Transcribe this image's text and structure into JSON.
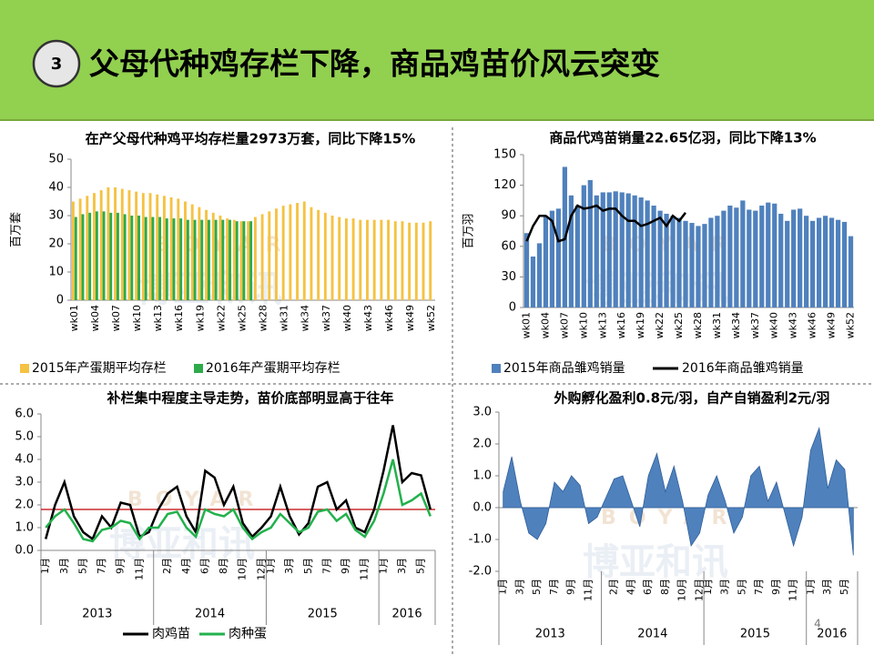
{
  "header": {
    "number": "3",
    "title": "父母代种鸡存栏下降，商品鸡苗价风云突变"
  },
  "watermark": {
    "text": "博亚和讯",
    "latin": "BOYAR"
  },
  "page_number": "4",
  "chart_data": [
    {
      "type": "bar",
      "title": "在产父母代种鸡平均存栏量2973万套，同比下降15%",
      "y_label": "百万套",
      "categories": [
        "wk01",
        null,
        null,
        "wk04",
        null,
        null,
        "wk07",
        null,
        null,
        "wk10",
        null,
        null,
        "wk13",
        null,
        null,
        "wk16",
        null,
        null,
        "wk19",
        null,
        null,
        "wk22",
        null,
        null,
        "wk25",
        null,
        null,
        "wk28",
        null,
        null,
        "wk31",
        null,
        null,
        "wk34",
        null,
        null,
        "wk37",
        null,
        null,
        "wk40",
        null,
        null,
        "wk43",
        null,
        null,
        "wk46",
        null,
        null,
        "wk49",
        null,
        null,
        "wk52"
      ],
      "series": [
        {
          "name": "2015年产蛋期平均存栏",
          "color": "#f5c242",
          "values": [
            35,
            36,
            37,
            38,
            39,
            40,
            40,
            39.5,
            39,
            38.5,
            38,
            38,
            37.5,
            37,
            36.5,
            36,
            35,
            34,
            33,
            32,
            31,
            30,
            29,
            28.5,
            28,
            28,
            29.5,
            30.5,
            31.5,
            32.5,
            33.5,
            34,
            34.5,
            35,
            33,
            32,
            31,
            30,
            29.5,
            29,
            29,
            28.5,
            28.5,
            28.5,
            28.5,
            28.5,
            28,
            28,
            27.5,
            27.5,
            27.5,
            28
          ]
        },
        {
          "name": "2016年产蛋期平均存栏",
          "color": "#2eaa4a",
          "values": [
            29.5,
            30.5,
            31,
            31.5,
            31.5,
            31,
            31,
            30.5,
            30,
            30,
            29.5,
            29.5,
            29.5,
            29,
            29,
            29,
            28.5,
            28.5,
            28.5,
            28.5,
            28.5,
            28.5,
            28.5,
            28,
            28,
            28,
            null,
            null,
            null,
            null,
            null,
            null,
            null,
            null,
            null,
            null,
            null,
            null,
            null,
            null,
            null,
            null,
            null,
            null,
            null,
            null,
            null,
            null,
            null,
            null,
            null,
            null
          ]
        }
      ],
      "ylim": [
        0,
        50
      ],
      "yticks": [
        0,
        10,
        20,
        30,
        40,
        50
      ],
      "grid": false,
      "legend": "bottom"
    },
    {
      "type": "bar",
      "title": "商品代鸡苗销量22.65亿羽，同比下降13%",
      "y_label": "百万羽",
      "categories": [
        "wk01",
        null,
        null,
        "wk04",
        null,
        null,
        "wk07",
        null,
        null,
        "wk10",
        null,
        null,
        "wk13",
        null,
        null,
        "wk16",
        null,
        null,
        "wk19",
        null,
        null,
        "wk22",
        null,
        null,
        "wk25",
        null,
        null,
        "wk28",
        null,
        null,
        "wk31",
        null,
        null,
        "wk34",
        null,
        null,
        "wk37",
        null,
        null,
        "wk40",
        null,
        null,
        "wk43",
        null,
        null,
        "wk46",
        null,
        null,
        "wk49",
        null,
        null,
        "wk52"
      ],
      "series": [
        {
          "name": "2015年商品雏鸡销量",
          "color": "#4f81bd",
          "type": "bar",
          "values": [
            73,
            50,
            63,
            90,
            95,
            97,
            138,
            110,
            100,
            120,
            125,
            110,
            113,
            113,
            114,
            113,
            112,
            110,
            108,
            105,
            100,
            95,
            92,
            90,
            88,
            85,
            83,
            80,
            82,
            88,
            90,
            95,
            100,
            98,
            105,
            96,
            95,
            100,
            103,
            102,
            92,
            85,
            96,
            97,
            90,
            85,
            88,
            90,
            88,
            86,
            84,
            70
          ]
        },
        {
          "name": "2016年商品雏鸡销量",
          "color": "#000000",
          "type": "line",
          "values": [
            65,
            80,
            90,
            90,
            85,
            65,
            67,
            90,
            100,
            97,
            98,
            100,
            95,
            97,
            97,
            90,
            85,
            85,
            80,
            82,
            85,
            88,
            80,
            90,
            85,
            93,
            null,
            null,
            null,
            null,
            null,
            null,
            null,
            null,
            null,
            null,
            null,
            null,
            null,
            null,
            null,
            null,
            null,
            null,
            null,
            null,
            null,
            null,
            null,
            null,
            null,
            null
          ]
        }
      ],
      "ylim": [
        0,
        150
      ],
      "yticks": [
        0,
        30,
        60,
        90,
        120,
        150
      ],
      "grid": false,
      "legend": "bottom"
    },
    {
      "type": "line",
      "title": "补栏集中程度主导走势，苗价底部明显高于往年",
      "categories": [
        "1月",
        null,
        "3月",
        null,
        "5月",
        null,
        "7月",
        null,
        "9月",
        null,
        "11月",
        null,
        null,
        "2月",
        null,
        "4月",
        null,
        "6月",
        null,
        "8月",
        null,
        "10月",
        null,
        "12月",
        "1月",
        null,
        "3月",
        null,
        "5月",
        null,
        "7月",
        null,
        "9月",
        null,
        "11月",
        null,
        "1月",
        null,
        "3月",
        null,
        "5月",
        null
      ],
      "year_labels": [
        "2013",
        "2014",
        "2015",
        "2016"
      ],
      "series": [
        {
          "name": "肉鸡苗",
          "color": "#000000",
          "values": [
            0.5,
            2.0,
            3.0,
            1.5,
            0.8,
            0.5,
            1.5,
            1.0,
            2.1,
            2.0,
            0.6,
            0.8,
            1.8,
            2.5,
            2.8,
            1.5,
            0.8,
            3.5,
            3.2,
            2.0,
            2.8,
            1.2,
            0.6,
            1.0,
            1.5,
            2.8,
            1.5,
            0.7,
            1.2,
            2.8,
            3.0,
            1.8,
            2.2,
            1.0,
            0.8,
            1.8,
            3.5,
            5.5,
            3.0,
            3.4,
            3.3,
            1.8
          ]
        },
        {
          "name": "肉种蛋",
          "color": "#22b14c",
          "values": [
            1.0,
            1.5,
            1.8,
            1.2,
            0.5,
            0.4,
            0.9,
            1.0,
            1.3,
            1.2,
            0.5,
            1.0,
            1.0,
            1.6,
            1.7,
            1.0,
            0.6,
            1.8,
            1.6,
            1.5,
            1.8,
            1.0,
            0.5,
            0.8,
            1.0,
            1.6,
            1.2,
            0.8,
            1.0,
            1.7,
            1.8,
            1.3,
            1.6,
            0.9,
            0.6,
            1.3,
            2.5,
            4.0,
            2.0,
            2.2,
            2.5,
            1.5
          ]
        }
      ],
      "reference_line": {
        "value": 1.8,
        "color": "#c00000"
      },
      "ylim": [
        0,
        6
      ],
      "yticks": [
        {
          "value": 0,
          "label": "0.0"
        },
        {
          "value": 1,
          "label": "1.0"
        },
        {
          "value": 2,
          "label": "2.0"
        },
        {
          "value": 3,
          "label": "3.0"
        },
        {
          "value": 4,
          "label": "4.0"
        },
        {
          "value": 5,
          "label": "5.0"
        },
        {
          "value": 6,
          "label": "6.0"
        }
      ],
      "grid": false,
      "legend": "bottom"
    },
    {
      "type": "area",
      "title": "外购孵化盈利0.8元/羽，自产自销盈利2元/羽",
      "categories": [
        "1月",
        null,
        "3月",
        null,
        "5月",
        null,
        "7月",
        null,
        "9月",
        null,
        "11月",
        null,
        null,
        "2月",
        null,
        "4月",
        null,
        "6月",
        null,
        "8月",
        null,
        "10月",
        null,
        "12月",
        "1月",
        null,
        "3月",
        null,
        "5月",
        null,
        "7月",
        null,
        "9月",
        null,
        "11月",
        null,
        "1月",
        null,
        "3月",
        null,
        "5月",
        null
      ],
      "year_labels": [
        "2013",
        "2014",
        "2015",
        "2016"
      ],
      "color": "#4f81bd",
      "values": [
        0.5,
        1.6,
        0.2,
        -0.8,
        -1.0,
        -0.5,
        0.8,
        0.5,
        1.0,
        0.7,
        -0.5,
        -0.3,
        0.3,
        0.9,
        1.0,
        0.2,
        -0.6,
        1.0,
        1.7,
        0.5,
        1.3,
        0.2,
        -1.2,
        -0.8,
        0.4,
        1.0,
        0.2,
        -0.8,
        -0.3,
        1.0,
        1.3,
        0.2,
        0.8,
        -0.2,
        -1.2,
        -0.3,
        1.8,
        2.5,
        0.6,
        1.5,
        1.2,
        -1.5
      ],
      "ylim": [
        -2,
        3
      ],
      "yticks": [
        {
          "value": -2,
          "label": "-2.0"
        },
        {
          "value": -1,
          "label": "-1.0"
        },
        {
          "value": 0,
          "label": "0.0"
        },
        {
          "value": 1,
          "label": "1.0"
        },
        {
          "value": 2,
          "label": "2.0"
        },
        {
          "value": 3,
          "label": "3.0"
        }
      ],
      "grid": false
    }
  ]
}
